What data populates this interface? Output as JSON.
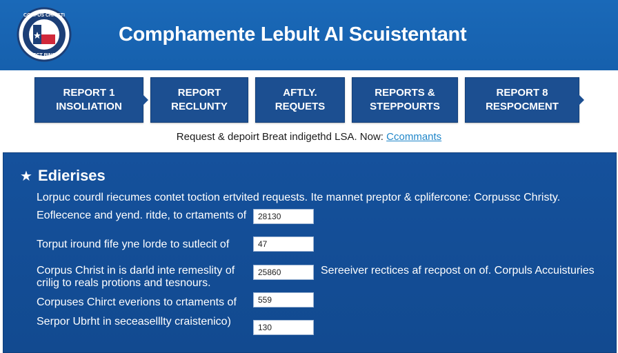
{
  "header": {
    "title": "Comphamente Lebult AI Scuistentant",
    "logo_text_top": "CORPUS CHRISTI",
    "logo_text_bottom": "ECT BINS"
  },
  "steps": [
    {
      "line1": "REPORT 1",
      "line2": "INSOLIATION"
    },
    {
      "line1": "REPORT",
      "line2": "RECLUNTY"
    },
    {
      "line1": "AFTLY.",
      "line2": "REQUETS"
    },
    {
      "line1": "REPORTS &",
      "line2": "STEPPOURTS"
    },
    {
      "line1": "REPORT 8",
      "line2": "RESPOCMENT"
    }
  ],
  "subline": {
    "text": "Request & depoirt Breat indigethd LSA. Now:",
    "link": "Ccommants"
  },
  "panel": {
    "title": "Edierises",
    "intro": "Lorpuc courdl riecumes contet toction ertvited requests. Ite mannet preptor & cplifercone: Corpussc Christy.",
    "rows": [
      {
        "label": "Eoflecence and yend. ritde, to crtaments of",
        "value": "28130"
      },
      {
        "label": "Torput iround fife yne lorde to sutlecit of",
        "value": "47"
      },
      {
        "label": "Corpus Christ in is darld inte remeslity of",
        "label2": "crilig to reals protions and tesnours.",
        "value": "25860",
        "note": "Sereeiver rectices af recpost on of. Corpuls Accuisturies"
      },
      {
        "label": "Corpuses Chirct everions to crtaments of",
        "value": "559"
      },
      {
        "label": "Serpor Ubrht in seceaselllty craistenico)",
        "value": "130"
      }
    ]
  },
  "colors": {
    "header": "#1a69b8",
    "step": "#1c4f91",
    "panel": "#15519c",
    "link": "#1f86c9"
  }
}
